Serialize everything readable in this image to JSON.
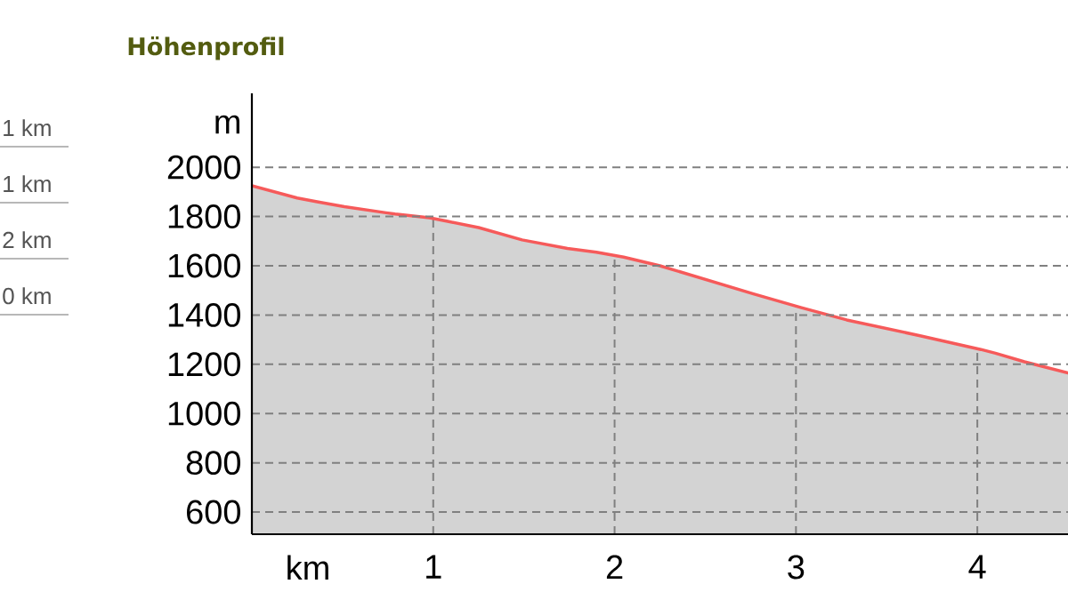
{
  "chart_data": {
    "type": "area",
    "title": "Höhenprofil",
    "xlabel": "km",
    "ylabel": "m",
    "annotations": [
      "1 km",
      "1 km",
      "2 km",
      "0 km"
    ],
    "x": [
      0,
      0.25,
      0.36,
      0.51,
      0.74,
      0.79,
      0.98,
      1.08,
      1.25,
      1.49,
      1.74,
      1.9,
      2.05,
      2.25,
      2.77,
      3.03,
      3.28,
      3.69,
      4.02,
      4.1,
      4.26,
      4.5
    ],
    "series": [
      {
        "color": "#f65a5a",
        "values": [
          1925,
          1875,
          1860,
          1840,
          1815,
          1810,
          1795,
          1780,
          1755,
          1705,
          1670,
          1655,
          1635,
          1600,
          1485,
          1430,
          1380,
          1315,
          1260,
          1245,
          1210,
          1165
        ]
      }
    ],
    "xlim": [
      0,
      4.5
    ],
    "ylim": [
      510,
      2300
    ],
    "xticks": [
      1,
      2,
      3,
      4
    ],
    "yticks": [
      600,
      800,
      1000,
      1200,
      1400,
      1600,
      1800,
      2000
    ],
    "grid": true
  }
}
